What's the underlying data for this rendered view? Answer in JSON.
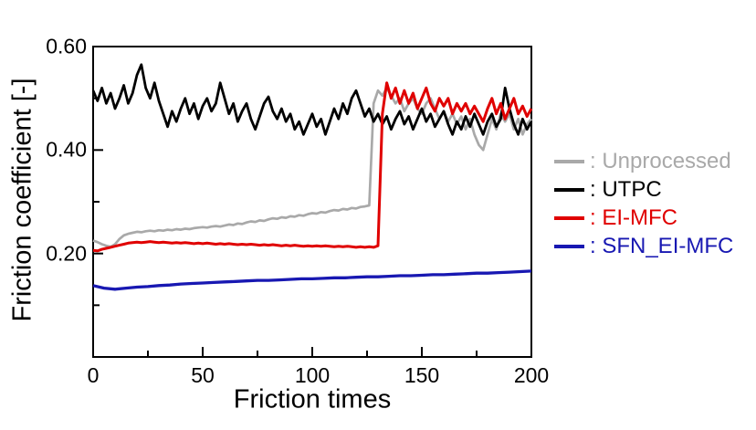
{
  "figure": {
    "background": "#ffffff",
    "frame_color": "#000000"
  },
  "chart_data": {
    "type": "line",
    "title": "",
    "xlabel": "Friction times",
    "ylabel": "Friction coefficient [-]",
    "xlim": [
      0,
      200
    ],
    "ylim": [
      0,
      0.6
    ],
    "grid": false,
    "legend_position": "right-outside",
    "x_major_ticks": [
      0,
      50,
      100,
      150,
      200
    ],
    "x_tick_labels": [
      "0",
      "50",
      "100",
      "150",
      "200"
    ],
    "x_minor_ticks": [
      25,
      75,
      125,
      175
    ],
    "y_major_ticks": [
      0.2,
      0.4,
      0.6
    ],
    "y_tick_labels": [
      "0.20",
      "0.40",
      "0.60"
    ],
    "y_minor_ticks": [
      0.1,
      0.3,
      0.5
    ],
    "series": [
      {
        "name": "Unprocessed",
        "color": "#a9a9a9",
        "x0": 0,
        "dx": 2,
        "y": [
          0.225,
          0.222,
          0.218,
          0.215,
          0.213,
          0.218,
          0.228,
          0.235,
          0.238,
          0.24,
          0.242,
          0.241,
          0.243,
          0.244,
          0.243,
          0.245,
          0.244,
          0.246,
          0.245,
          0.247,
          0.246,
          0.248,
          0.247,
          0.249,
          0.25,
          0.251,
          0.25,
          0.252,
          0.253,
          0.252,
          0.254,
          0.256,
          0.255,
          0.258,
          0.257,
          0.26,
          0.262,
          0.261,
          0.264,
          0.263,
          0.266,
          0.268,
          0.267,
          0.27,
          0.269,
          0.272,
          0.271,
          0.274,
          0.273,
          0.276,
          0.278,
          0.277,
          0.28,
          0.279,
          0.282,
          0.284,
          0.283,
          0.286,
          0.285,
          0.288,
          0.287,
          0.29,
          0.291,
          0.293,
          0.49,
          0.515,
          0.505,
          0.52,
          0.505,
          0.49,
          0.5,
          0.475,
          0.49,
          0.5,
          0.48,
          0.47,
          0.49,
          0.5,
          0.48,
          0.46,
          0.475,
          0.455,
          0.47,
          0.45,
          0.465,
          0.44,
          0.46,
          0.43,
          0.41,
          0.4,
          0.43,
          0.46,
          0.44,
          0.47,
          0.455,
          0.47,
          0.44,
          0.46,
          0.43,
          0.45,
          0.46
        ]
      },
      {
        "name": "UTPC",
        "color": "#000000",
        "x0": 0,
        "dx": 2,
        "y": [
          0.515,
          0.495,
          0.52,
          0.49,
          0.51,
          0.48,
          0.5,
          0.525,
          0.49,
          0.51,
          0.545,
          0.565,
          0.52,
          0.5,
          0.53,
          0.495,
          0.47,
          0.445,
          0.475,
          0.455,
          0.48,
          0.5,
          0.47,
          0.49,
          0.46,
          0.485,
          0.5,
          0.475,
          0.49,
          0.53,
          0.5,
          0.47,
          0.49,
          0.455,
          0.475,
          0.49,
          0.46,
          0.44,
          0.465,
          0.49,
          0.503,
          0.475,
          0.46,
          0.48,
          0.455,
          0.47,
          0.44,
          0.455,
          0.43,
          0.45,
          0.47,
          0.445,
          0.46,
          0.43,
          0.455,
          0.48,
          0.46,
          0.49,
          0.47,
          0.5,
          0.515,
          0.49,
          0.465,
          0.48,
          0.455,
          0.47,
          0.45,
          0.465,
          0.44,
          0.46,
          0.475,
          0.45,
          0.465,
          0.44,
          0.46,
          0.48,
          0.455,
          0.47,
          0.445,
          0.46,
          0.475,
          0.45,
          0.43,
          0.455,
          0.44,
          0.465,
          0.445,
          0.47,
          0.45,
          0.43,
          0.455,
          0.47,
          0.445,
          0.46,
          0.52,
          0.48,
          0.45,
          0.43,
          0.46,
          0.44,
          0.455
        ]
      },
      {
        "name": "EI-MFC",
        "color": "#e00000",
        "x0": 0,
        "dx": 2,
        "y": [
          0.206,
          0.205,
          0.208,
          0.21,
          0.212,
          0.214,
          0.216,
          0.218,
          0.22,
          0.221,
          0.222,
          0.221,
          0.222,
          0.223,
          0.222,
          0.221,
          0.222,
          0.221,
          0.22,
          0.221,
          0.22,
          0.221,
          0.22,
          0.219,
          0.22,
          0.219,
          0.22,
          0.219,
          0.218,
          0.219,
          0.218,
          0.219,
          0.218,
          0.217,
          0.218,
          0.217,
          0.218,
          0.217,
          0.216,
          0.217,
          0.216,
          0.217,
          0.216,
          0.215,
          0.216,
          0.215,
          0.216,
          0.215,
          0.214,
          0.215,
          0.214,
          0.215,
          0.214,
          0.215,
          0.214,
          0.213,
          0.214,
          0.213,
          0.214,
          0.213,
          0.212,
          0.213,
          0.212,
          0.213,
          0.212,
          0.215,
          0.47,
          0.53,
          0.5,
          0.52,
          0.49,
          0.515,
          0.49,
          0.51,
          0.48,
          0.5,
          0.52,
          0.49,
          0.475,
          0.5,
          0.485,
          0.5,
          0.47,
          0.49,
          0.475,
          0.49,
          0.47,
          0.485,
          0.47,
          0.455,
          0.48,
          0.5,
          0.47,
          0.49,
          0.46,
          0.48,
          0.5,
          0.47,
          0.485,
          0.465,
          0.48
        ]
      },
      {
        "name": "SFN_EI-MFC",
        "color": "#1818b2",
        "x0": 0,
        "dx": 5,
        "y": [
          0.138,
          0.133,
          0.131,
          0.133,
          0.135,
          0.136,
          0.138,
          0.139,
          0.141,
          0.142,
          0.143,
          0.144,
          0.145,
          0.146,
          0.147,
          0.148,
          0.148,
          0.149,
          0.15,
          0.151,
          0.151,
          0.152,
          0.153,
          0.153,
          0.154,
          0.155,
          0.155,
          0.156,
          0.157,
          0.157,
          0.158,
          0.159,
          0.159,
          0.16,
          0.161,
          0.162,
          0.162,
          0.163,
          0.164,
          0.165,
          0.166
        ]
      }
    ],
    "legend": [
      {
        "display": ": Unprocessed"
      },
      {
        "display": ": UTPC"
      },
      {
        "display": ": EI-MFC"
      },
      {
        "display": ": SFN_EI-MFC"
      }
    ]
  }
}
